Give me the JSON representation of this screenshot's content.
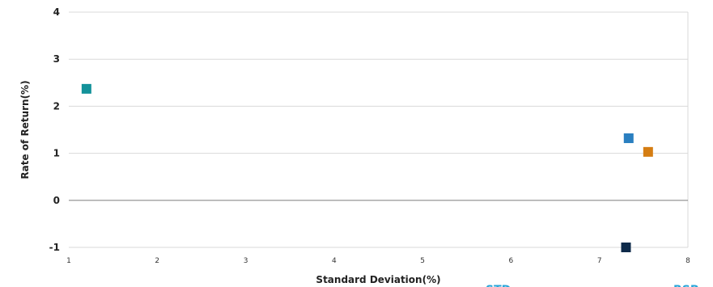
{
  "chart_data": {
    "type": "scatter",
    "xlabel": "Standard Deviation(%)",
    "ylabel": "Rate of Return(%)",
    "xlim": [
      1,
      8
    ],
    "ylim": [
      -1,
      4
    ],
    "x_ticks": [
      "1",
      "2",
      "3",
      "4",
      "5",
      "6",
      "7",
      "8"
    ],
    "y_ticks": [
      "-1",
      "0",
      "1",
      "2",
      "3",
      "4"
    ],
    "zero_line": 0,
    "grid": "horizontal",
    "points": [
      {
        "x": 1.2,
        "y": 2.37,
        "color": "#13929a"
      },
      {
        "x": 7.33,
        "y": 1.32,
        "color": "#2a7fc0"
      },
      {
        "x": 7.55,
        "y": 1.03,
        "color": "#d57d12"
      },
      {
        "x": 7.3,
        "y": -1.0,
        "color": "#0e2a4a"
      }
    ],
    "legend": {
      "placement": "bottom-right",
      "entries": [
        {
          "label": "STD",
          "color": "#2aa6d9"
        },
        {
          "label": "RSP",
          "color": "#2aa6d9"
        }
      ]
    }
  }
}
